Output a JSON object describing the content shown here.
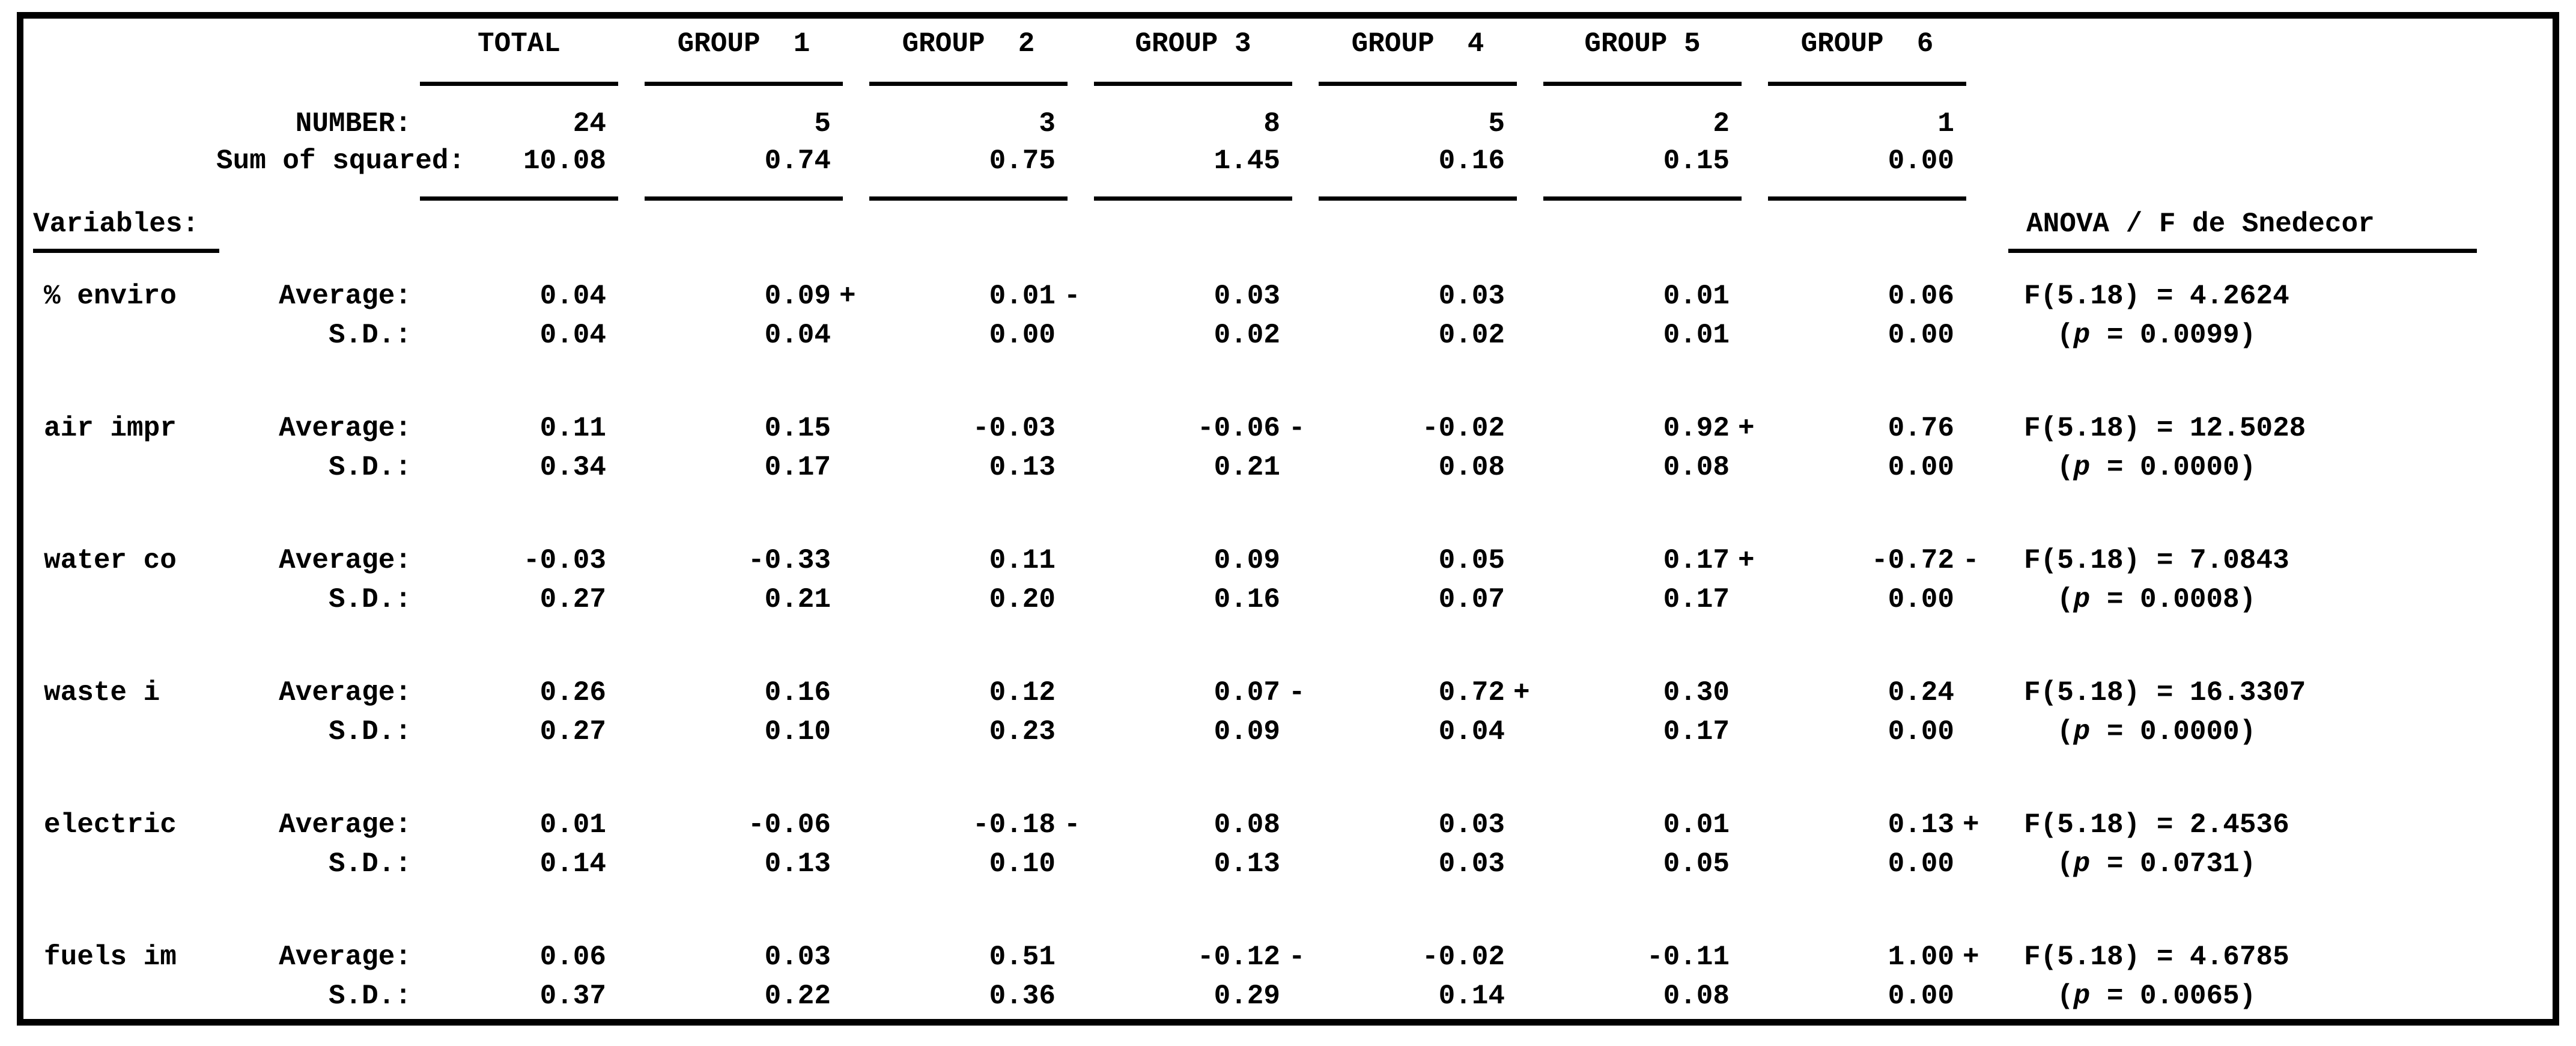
{
  "header": {
    "cols": [
      "TOTAL",
      "GROUP  1",
      "GROUP  2",
      "GROUP 3",
      "GROUP  4",
      "GROUP 5",
      "GROUP  6"
    ]
  },
  "labels": {
    "number": "NUMBER:",
    "sum": "Sum of squared:",
    "variables": "Variables:",
    "anova": "ANOVA / F de Snedecor",
    "average": "Average:",
    "sd": "S.D.:"
  },
  "number_values": [
    "24",
    "5",
    "3",
    "8",
    "5",
    "2",
    "1"
  ],
  "sum_values": [
    "10.08",
    "0.74",
    "0.75",
    "1.45",
    "0.16",
    "0.15",
    "0.00"
  ],
  "variables": [
    {
      "name": "% enviro",
      "averages": [
        "0.04",
        "0.09",
        "0.01",
        "0.03",
        "0.03",
        "0.01",
        "0.06"
      ],
      "avg_flags": [
        "",
        "+",
        "-",
        "",
        "",
        "",
        ""
      ],
      "sds": [
        "0.04",
        "0.04",
        "0.00",
        "0.02",
        "0.02",
        "0.01",
        "0.00"
      ],
      "f_stat": "F(5.18) = 4.2624",
      "p_open": "(",
      "p_symbol": "p",
      "p_rest": " = 0.0099)"
    },
    {
      "name": "air impr",
      "averages": [
        "0.11",
        "0.15",
        "-0.03",
        "-0.06",
        "-0.02",
        "0.92",
        "0.76"
      ],
      "avg_flags": [
        "",
        "",
        "",
        "-",
        "",
        "+",
        ""
      ],
      "sds": [
        "0.34",
        "0.17",
        "0.13",
        "0.21",
        "0.08",
        "0.08",
        "0.00"
      ],
      "f_stat": "F(5.18) = 12.5028",
      "p_open": "(",
      "p_symbol": "p",
      "p_rest": " = 0.0000)"
    },
    {
      "name": "water co",
      "averages": [
        "-0.03",
        "-0.33",
        "0.11",
        "0.09",
        "0.05",
        "0.17",
        "-0.72"
      ],
      "avg_flags": [
        "",
        "",
        "",
        "",
        "",
        "+",
        "-"
      ],
      "sds": [
        "0.27",
        "0.21",
        "0.20",
        "0.16",
        "0.07",
        "0.17",
        "0.00"
      ],
      "f_stat": "F(5.18) = 7.0843",
      "p_open": "(",
      "p_symbol": "p",
      "p_rest": " = 0.0008)"
    },
    {
      "name": "waste i",
      "averages": [
        "0.26",
        "0.16",
        "0.12",
        "0.07",
        "0.72",
        "0.30",
        "0.24"
      ],
      "avg_flags": [
        "",
        "",
        "",
        "-",
        "+",
        "",
        ""
      ],
      "sds": [
        "0.27",
        "0.10",
        "0.23",
        "0.09",
        "0.04",
        "0.17",
        "0.00"
      ],
      "f_stat": "F(5.18) = 16.3307",
      "p_open": "(",
      "p_symbol": "p",
      "p_rest": " = 0.0000)"
    },
    {
      "name": "electric",
      "averages": [
        "0.01",
        "-0.06",
        "-0.18",
        "0.08",
        "0.03",
        "0.01",
        "0.13"
      ],
      "avg_flags": [
        "",
        "",
        "-",
        "",
        "",
        "",
        "+"
      ],
      "sds": [
        "0.14",
        "0.13",
        "0.10",
        "0.13",
        "0.03",
        "0.05",
        "0.00"
      ],
      "f_stat": "F(5.18) = 2.4536",
      "p_open": "(",
      "p_symbol": "p",
      "p_rest": " = 0.0731)"
    },
    {
      "name": "fuels im",
      "averages": [
        "0.06",
        "0.03",
        "0.51",
        "-0.12",
        "-0.02",
        "-0.11",
        "1.00"
      ],
      "avg_flags": [
        "",
        "",
        "",
        "-",
        "",
        "",
        "+"
      ],
      "sds": [
        "0.37",
        "0.22",
        "0.36",
        "0.29",
        "0.14",
        "0.08",
        "0.00"
      ],
      "f_stat": "F(5.18) = 4.6785",
      "p_open": "(",
      "p_symbol": "p",
      "p_rest": " = 0.0065)"
    }
  ]
}
